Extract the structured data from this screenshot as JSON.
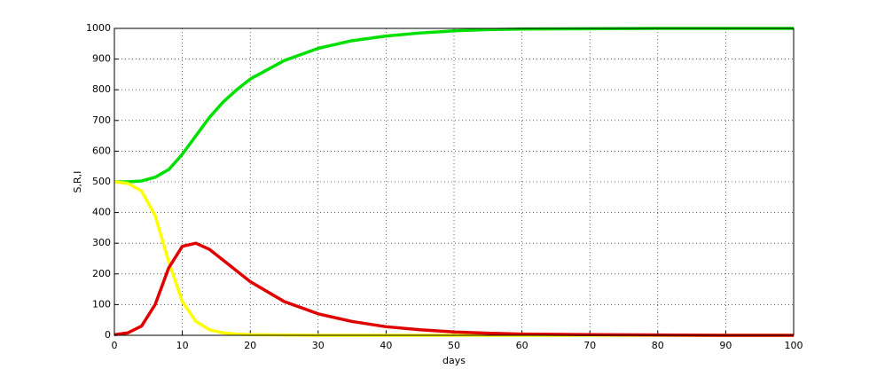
{
  "chart_data": {
    "type": "line",
    "x_label": "days",
    "y_label": "S,R,I",
    "x": [
      0,
      2,
      4,
      6,
      8,
      10,
      12,
      14,
      16,
      18,
      20,
      25,
      30,
      35,
      40,
      45,
      50,
      55,
      60,
      70,
      80,
      90,
      100
    ],
    "series": [
      {
        "color": "#00e000",
        "values": [
          500,
          500,
          503,
          515,
          540,
          590,
          650,
          710,
          760,
          800,
          835,
          895,
          935,
          960,
          975,
          985,
          992,
          996,
          998,
          999,
          1000,
          1000,
          1000
        ]
      },
      {
        "color": "#ffff00",
        "values": [
          500,
          495,
          470,
          390,
          240,
          110,
          45,
          18,
          8,
          4,
          2,
          1,
          0,
          0,
          0,
          0,
          0,
          0,
          0,
          0,
          0,
          0,
          0
        ]
      },
      {
        "color": "#e00000",
        "values": [
          2,
          8,
          30,
          100,
          220,
          290,
          300,
          280,
          245,
          210,
          175,
          110,
          70,
          45,
          28,
          18,
          11,
          7,
          4,
          2,
          1,
          0,
          0
        ]
      }
    ],
    "xlim": [
      0,
      100
    ],
    "xticks": [
      0,
      10,
      20,
      30,
      40,
      50,
      60,
      70,
      80,
      90,
      100
    ],
    "ylim": [
      0,
      1000
    ],
    "yticks": [
      0,
      100,
      200,
      300,
      400,
      500,
      600,
      700,
      800,
      900,
      1000
    ],
    "grid": true
  }
}
